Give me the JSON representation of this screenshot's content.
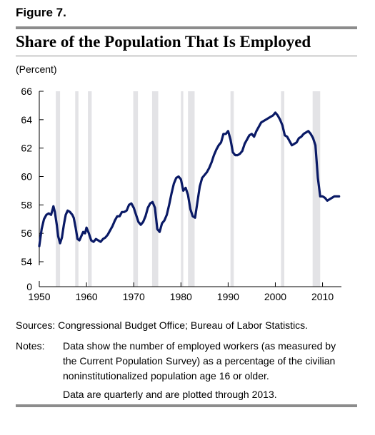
{
  "figure_label": "Figure 7.",
  "chart_data": {
    "type": "line",
    "title": "Share of the Population That Is Employed",
    "unit_label": "(Percent)",
    "xlim": [
      1950,
      2014
    ],
    "ylim": [
      0,
      66
    ],
    "y_axis_break_between": [
      0,
      54
    ],
    "x_ticks": [
      1950,
      1960,
      1970,
      1980,
      1990,
      2000,
      2010
    ],
    "y_ticks": [
      0,
      54,
      56,
      58,
      60,
      62,
      64,
      66
    ],
    "grid": false,
    "shaded_periods_meaning": "recessions",
    "recessions": [
      [
        1953.5,
        1954.4
      ],
      [
        1957.6,
        1958.3
      ],
      [
        1960.3,
        1961.1
      ],
      [
        1969.9,
        1970.9
      ],
      [
        1973.9,
        1975.2
      ],
      [
        1980.0,
        1980.5
      ],
      [
        1981.5,
        1982.9
      ],
      [
        1990.5,
        1991.2
      ],
      [
        2001.2,
        2001.9
      ],
      [
        2007.9,
        2009.5
      ]
    ],
    "colors": {
      "line": "#0a1a66",
      "shade": "#e3e3e6",
      "axis": "#000000"
    },
    "series": [
      {
        "name": "",
        "x": [
          1950.0,
          1950.5,
          1951.0,
          1951.5,
          1952.0,
          1952.5,
          1953.0,
          1953.3,
          1953.7,
          1954.0,
          1954.4,
          1954.8,
          1955.2,
          1955.6,
          1956.0,
          1956.5,
          1957.0,
          1957.3,
          1957.7,
          1958.1,
          1958.5,
          1958.9,
          1959.3,
          1959.7,
          1960.0,
          1960.5,
          1961.0,
          1961.5,
          1962.0,
          1962.5,
          1963.0,
          1963.5,
          1964.0,
          1964.5,
          1965.0,
          1965.5,
          1966.0,
          1966.5,
          1967.0,
          1967.5,
          1968.0,
          1968.5,
          1969.0,
          1969.5,
          1970.0,
          1970.5,
          1971.0,
          1971.5,
          1972.0,
          1972.5,
          1973.0,
          1973.5,
          1974.0,
          1974.5,
          1975.0,
          1975.5,
          1976.0,
          1976.5,
          1977.0,
          1977.5,
          1978.0,
          1978.5,
          1979.0,
          1979.5,
          1980.0,
          1980.5,
          1981.0,
          1981.5,
          1982.0,
          1982.5,
          1983.0,
          1983.5,
          1984.0,
          1984.5,
          1985.0,
          1985.5,
          1986.0,
          1986.5,
          1987.0,
          1987.5,
          1988.0,
          1988.5,
          1989.0,
          1989.5,
          1990.0,
          1990.5,
          1991.0,
          1991.5,
          1992.0,
          1992.5,
          1993.0,
          1993.5,
          1994.0,
          1994.5,
          1995.0,
          1995.5,
          1996.0,
          1996.5,
          1997.0,
          1997.5,
          1998.0,
          1998.5,
          1999.0,
          1999.5,
          2000.0,
          2000.5,
          2001.0,
          2001.5,
          2002.0,
          2002.5,
          2003.0,
          2003.5,
          2004.0,
          2004.5,
          2005.0,
          2005.5,
          2006.0,
          2006.5,
          2007.0,
          2007.5,
          2008.0,
          2008.5,
          2009.0,
          2009.5,
          2010.0,
          2010.5,
          2011.0,
          2011.5,
          2012.0,
          2012.5,
          2013.0,
          2013.5
        ],
        "values": [
          55.1,
          56.3,
          57.0,
          57.3,
          57.4,
          57.3,
          57.9,
          57.5,
          56.6,
          55.8,
          55.3,
          55.7,
          56.6,
          57.3,
          57.6,
          57.5,
          57.3,
          57.1,
          56.4,
          55.6,
          55.5,
          55.8,
          56.1,
          56.0,
          56.4,
          56.0,
          55.5,
          55.4,
          55.6,
          55.5,
          55.4,
          55.6,
          55.7,
          55.9,
          56.2,
          56.5,
          56.9,
          57.2,
          57.2,
          57.5,
          57.5,
          57.6,
          58.0,
          58.1,
          57.8,
          57.3,
          56.8,
          56.6,
          56.8,
          57.2,
          57.8,
          58.1,
          58.2,
          57.8,
          56.3,
          56.1,
          56.7,
          56.9,
          57.3,
          58.0,
          58.8,
          59.5,
          59.9,
          60.0,
          59.8,
          59.0,
          59.2,
          58.7,
          57.7,
          57.2,
          57.1,
          58.2,
          59.3,
          59.9,
          60.1,
          60.3,
          60.6,
          61.0,
          61.5,
          61.9,
          62.2,
          62.4,
          63.0,
          63.0,
          63.2,
          62.6,
          61.7,
          61.5,
          61.5,
          61.6,
          61.8,
          62.3,
          62.6,
          62.9,
          63.0,
          62.8,
          63.2,
          63.5,
          63.8,
          63.9,
          64.0,
          64.1,
          64.2,
          64.3,
          64.5,
          64.3,
          64.0,
          63.6,
          62.9,
          62.8,
          62.5,
          62.2,
          62.3,
          62.4,
          62.7,
          62.8,
          63.0,
          63.1,
          63.2,
          63.0,
          62.7,
          62.2,
          59.9,
          58.6,
          58.6,
          58.5,
          58.3,
          58.4,
          58.5,
          58.6,
          58.6,
          58.6
        ]
      }
    ]
  },
  "sources_text": "Sources:  Congressional Budget Office; Bureau of Labor Statistics.",
  "notes_label": "Notes:",
  "notes_text_1": "Data show the number of employed workers (as measured by the Current Population Survey) as a percentage of the civilian noninstitutionalized population age 16 or older.",
  "notes_text_2": "Data are quarterly and are plotted through 2013."
}
